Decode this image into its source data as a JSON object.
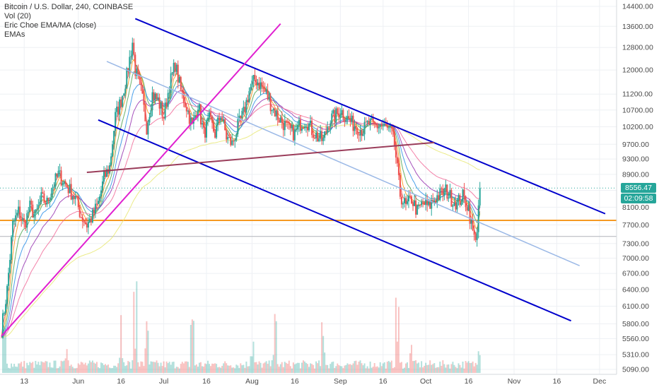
{
  "legend": {
    "symbol_line": "Bitcoin / U.S. Dollar, 240, COINBASE",
    "volume_line": "Vol (20)",
    "indicator_line": "Eric Choe EMA/MA (close)",
    "emas_line": "EMAs"
  },
  "price_labels": {
    "last_price": "8556.47",
    "countdown": "02:09:58"
  },
  "colors": {
    "background": "#ffffff",
    "grid": "#eef0f4",
    "candle_up": "#26a69a",
    "candle_down": "#ef5350",
    "trend_blue": "#0000cc",
    "trend_lightblue": "#9ab8e6",
    "trend_magenta": "#e020d0",
    "trend_maroon": "#9a3c5a",
    "support_orange": "#f59a23",
    "last_price_green": "#26a69a",
    "axis_text": "#4a4a4a"
  },
  "chart_data": {
    "type": "candlestick",
    "title": "Bitcoin / U.S. Dollar, 240, COINBASE",
    "ylim": [
      5000,
      14500
    ],
    "y_scale": "log",
    "y_ticks": [
      14400,
      13600,
      12800,
      12000,
      11200,
      10700,
      10200,
      9700,
      9300,
      8900,
      8500,
      8100,
      7700,
      7300,
      7000,
      6700,
      6400,
      6100,
      5800,
      5560,
      5310,
      5090
    ],
    "x_ticks": [
      {
        "label": "13",
        "t": 13
      },
      {
        "label": "Jun",
        "t": 32
      },
      {
        "label": "16",
        "t": 47
      },
      {
        "label": "Jul",
        "t": 62
      },
      {
        "label": "16",
        "t": 77
      },
      {
        "label": "Aug",
        "t": 93
      },
      {
        "label": "16",
        "t": 108
      },
      {
        "label": "Sep",
        "t": 124
      },
      {
        "label": "16",
        "t": 139
      },
      {
        "label": "Oct",
        "t": 154
      },
      {
        "label": "16",
        "t": 169
      },
      {
        "label": "Nov",
        "t": 185
      },
      {
        "label": "16",
        "t": 200
      },
      {
        "label": "Dec",
        "t": 215
      }
    ],
    "x_domain": [
      5,
      219
    ],
    "price_series": {
      "name": "BTC/USD",
      "points": [
        [
          5,
          5700
        ],
        [
          7,
          6400
        ],
        [
          9,
          7700
        ],
        [
          11,
          8000
        ],
        [
          13,
          7700
        ],
        [
          15,
          8100
        ],
        [
          17,
          7900
        ],
        [
          19,
          8300
        ],
        [
          21,
          8200
        ],
        [
          23,
          8600
        ],
        [
          25,
          8900
        ],
        [
          27,
          8700
        ],
        [
          29,
          8500
        ],
        [
          31,
          8300
        ],
        [
          33,
          7900
        ],
        [
          35,
          7700
        ],
        [
          37,
          7900
        ],
        [
          39,
          8200
        ],
        [
          41,
          8800
        ],
        [
          43,
          9100
        ],
        [
          45,
          10500
        ],
        [
          47,
          11000
        ],
        [
          49,
          11800
        ],
        [
          51,
          13000
        ],
        [
          52,
          12000
        ],
        [
          54,
          11300
        ],
        [
          56,
          10200
        ],
        [
          58,
          11200
        ],
        [
          60,
          11000
        ],
        [
          62,
          10500
        ],
        [
          64,
          11500
        ],
        [
          66,
          12200
        ],
        [
          68,
          11300
        ],
        [
          70,
          10800
        ],
        [
          72,
          10200
        ],
        [
          74,
          10900
        ],
        [
          76,
          10000
        ],
        [
          78,
          10400
        ],
        [
          80,
          10000
        ],
        [
          82,
          10600
        ],
        [
          84,
          9900
        ],
        [
          86,
          9700
        ],
        [
          88,
          10200
        ],
        [
          90,
          10600
        ],
        [
          92,
          11300
        ],
        [
          94,
          11700
        ],
        [
          96,
          11500
        ],
        [
          98,
          11200
        ],
        [
          100,
          10800
        ],
        [
          102,
          10500
        ],
        [
          104,
          10300
        ],
        [
          106,
          10100
        ],
        [
          108,
          10000
        ],
        [
          110,
          10300
        ],
        [
          112,
          10400
        ],
        [
          114,
          10100
        ],
        [
          116,
          9900
        ],
        [
          118,
          9800
        ],
        [
          120,
          10400
        ],
        [
          122,
          10500
        ],
        [
          124,
          10700
        ],
        [
          126,
          10500
        ],
        [
          128,
          10300
        ],
        [
          130,
          10200
        ],
        [
          132,
          10100
        ],
        [
          134,
          10300
        ],
        [
          136,
          10200
        ],
        [
          138,
          10250
        ],
        [
          140,
          10150
        ],
        [
          142,
          10000
        ],
        [
          143,
          9700
        ],
        [
          144,
          9000
        ],
        [
          145,
          8400
        ],
        [
          147,
          8100
        ],
        [
          149,
          8300
        ],
        [
          151,
          8000
        ],
        [
          153,
          8200
        ],
        [
          155,
          8100
        ],
        [
          157,
          8300
        ],
        [
          159,
          8400
        ],
        [
          161,
          8500
        ],
        [
          163,
          8300
        ],
        [
          165,
          8200
        ],
        [
          167,
          8350
        ],
        [
          169,
          8100
        ],
        [
          170,
          7700
        ],
        [
          171,
          7400
        ],
        [
          172,
          7600
        ],
        [
          173,
          8556
        ]
      ]
    },
    "volume_series": {
      "name": "Vol (20)",
      "spikes": [
        [
          6,
          30
        ],
        [
          28,
          22
        ],
        [
          47,
          35
        ],
        [
          52,
          60
        ],
        [
          56,
          30
        ],
        [
          72,
          45
        ],
        [
          93,
          25
        ],
        [
          101,
          35
        ],
        [
          118,
          28
        ],
        [
          144,
          40
        ],
        [
          149,
          20
        ],
        [
          173,
          40
        ]
      ]
    },
    "annotations": {
      "last_price": 8556.47,
      "countdown": "02:09:58",
      "support_level": 7800,
      "gray_level": 7450,
      "channel_upper": {
        "from": [
          52,
          13900
        ],
        "to": [
          217,
          7950
        ]
      },
      "channel_lower": {
        "from": [
          39,
          10400
        ],
        "to": [
          205,
          5850
        ]
      },
      "channel_mid": {
        "from": [
          42,
          12300
        ],
        "to": [
          208,
          6850
        ]
      },
      "magenta_trend": {
        "from": [
          5,
          5600
        ],
        "to": [
          103,
          13700
        ]
      },
      "maroon_trend": {
        "from": [
          35,
          8950
        ],
        "to": [
          157,
          9750
        ]
      }
    }
  }
}
